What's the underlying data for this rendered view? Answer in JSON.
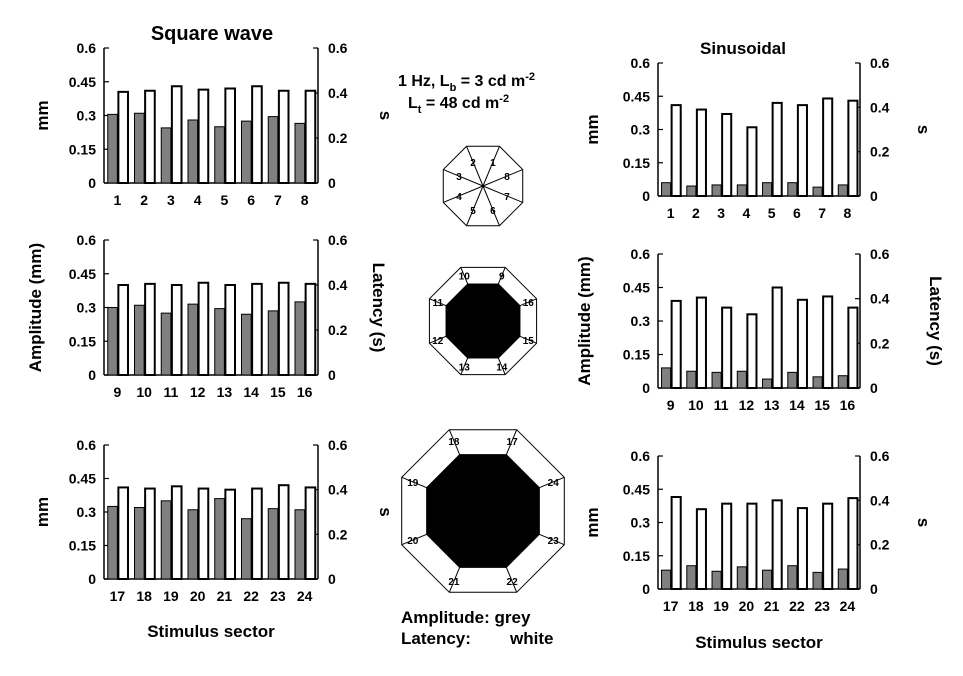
{
  "header": {
    "left_title": "Square wave",
    "right_title": "Sinusoidal",
    "condition_line1_prefix": "1 Hz, L",
    "condition_line1_sub": "b",
    "condition_line1_mid": " = 3 cd m",
    "condition_line1_sup": "-2",
    "condition_line2_prefix": "L",
    "condition_line2_sub": "t",
    "condition_line2_mid": " = 48 cd m",
    "condition_line2_sup": "-2"
  },
  "legend": {
    "line1": "Amplitude: grey",
    "line2_label": "Latency:",
    "line2_value": "white",
    "amplitude_color": "#808080",
    "latency_color": "#ffffff"
  },
  "stimulus_diagrams": [
    {
      "sectors": [
        "1",
        "2",
        "3",
        "4",
        "5",
        "6",
        "7",
        "8"
      ],
      "center_filled": false
    },
    {
      "sectors": [
        "9",
        "10",
        "11",
        "12",
        "13",
        "14",
        "15",
        "16"
      ],
      "center_filled": true
    },
    {
      "sectors": [
        "17",
        "18",
        "19",
        "20",
        "21",
        "22",
        "23",
        "24"
      ],
      "center_filled": true
    }
  ],
  "chart_data": [
    {
      "type": "bar",
      "name": "square-ring1",
      "categories": [
        "1",
        "2",
        "3",
        "4",
        "5",
        "6",
        "7",
        "8"
      ],
      "series": [
        {
          "name": "Amplitude",
          "axis": "left",
          "color": "#808080",
          "values": [
            0.305,
            0.31,
            0.245,
            0.28,
            0.25,
            0.275,
            0.295,
            0.265
          ]
        },
        {
          "name": "Latency",
          "axis": "right",
          "color": "#ffffff",
          "values": [
            0.405,
            0.41,
            0.43,
            0.415,
            0.42,
            0.43,
            0.41,
            0.41
          ]
        }
      ],
      "left_ticks": [
        "0",
        "0.15",
        "0.3",
        "0.45",
        "0.6"
      ],
      "right_ticks": [
        "0",
        "0.2",
        "0.4",
        "0.6"
      ],
      "ylim_left": [
        0,
        0.6
      ],
      "ylim_right": [
        0,
        0.6
      ],
      "ylabel_left": "mm",
      "ylabel_right": "s",
      "xlabel": ""
    },
    {
      "type": "bar",
      "name": "square-ring2",
      "categories": [
        "9",
        "10",
        "11",
        "12",
        "13",
        "14",
        "15",
        "16"
      ],
      "series": [
        {
          "name": "Amplitude",
          "axis": "left",
          "color": "#808080",
          "values": [
            0.3,
            0.31,
            0.275,
            0.315,
            0.295,
            0.27,
            0.285,
            0.325
          ]
        },
        {
          "name": "Latency",
          "axis": "right",
          "color": "#ffffff",
          "values": [
            0.4,
            0.405,
            0.4,
            0.41,
            0.4,
            0.405,
            0.41,
            0.405
          ]
        }
      ],
      "left_ticks": [
        "0",
        "0.15",
        "0.3",
        "0.45",
        "0.6"
      ],
      "right_ticks": [
        "0",
        "0.2",
        "0.4",
        "0.6"
      ],
      "ylim_left": [
        0,
        0.6
      ],
      "ylim_right": [
        0,
        0.6
      ],
      "ylabel_left": "Amplitude (mm)",
      "ylabel_right": "Latency (s)",
      "xlabel": ""
    },
    {
      "type": "bar",
      "name": "square-ring3",
      "categories": [
        "17",
        "18",
        "19",
        "20",
        "21",
        "22",
        "23",
        "24"
      ],
      "series": [
        {
          "name": "Amplitude",
          "axis": "left",
          "color": "#808080",
          "values": [
            0.325,
            0.32,
            0.35,
            0.31,
            0.36,
            0.27,
            0.315,
            0.31
          ]
        },
        {
          "name": "Latency",
          "axis": "right",
          "color": "#ffffff",
          "values": [
            0.41,
            0.405,
            0.415,
            0.405,
            0.4,
            0.405,
            0.42,
            0.41
          ]
        }
      ],
      "left_ticks": [
        "0",
        "0.15",
        "0.3",
        "0.45",
        "0.6"
      ],
      "right_ticks": [
        "0",
        "0.2",
        "0.4",
        "0.6"
      ],
      "ylim_left": [
        0,
        0.6
      ],
      "ylim_right": [
        0,
        0.6
      ],
      "ylabel_left": "mm",
      "ylabel_right": "s",
      "xlabel": "Stimulus sector"
    },
    {
      "type": "bar",
      "name": "sine-ring1",
      "categories": [
        "1",
        "2",
        "3",
        "4",
        "5",
        "6",
        "7",
        "8"
      ],
      "series": [
        {
          "name": "Amplitude",
          "axis": "left",
          "color": "#808080",
          "values": [
            0.06,
            0.045,
            0.05,
            0.05,
            0.06,
            0.06,
            0.04,
            0.05
          ]
        },
        {
          "name": "Latency",
          "axis": "right",
          "color": "#ffffff",
          "values": [
            0.41,
            0.39,
            0.37,
            0.31,
            0.42,
            0.41,
            0.44,
            0.43
          ]
        }
      ],
      "left_ticks": [
        "0",
        "0.15",
        "0.3",
        "0.45",
        "0.6"
      ],
      "right_ticks": [
        "0",
        "0.2",
        "0.4",
        "0.6"
      ],
      "ylim_left": [
        0,
        0.6
      ],
      "ylim_right": [
        0,
        0.6
      ],
      "ylabel_left": "mm",
      "ylabel_right": "s",
      "xlabel": ""
    },
    {
      "type": "bar",
      "name": "sine-ring2",
      "categories": [
        "9",
        "10",
        "11",
        "12",
        "13",
        "14",
        "15",
        "16"
      ],
      "series": [
        {
          "name": "Amplitude",
          "axis": "left",
          "color": "#808080",
          "values": [
            0.09,
            0.075,
            0.07,
            0.075,
            0.04,
            0.07,
            0.05,
            0.055
          ]
        },
        {
          "name": "Latency",
          "axis": "right",
          "color": "#ffffff",
          "values": [
            0.39,
            0.405,
            0.36,
            0.33,
            0.45,
            0.395,
            0.41,
            0.36
          ]
        }
      ],
      "left_ticks": [
        "0",
        "0.15",
        "0.3",
        "0.45",
        "0.6"
      ],
      "right_ticks": [
        "0",
        "0.2",
        "0.4",
        "0.6"
      ],
      "ylim_left": [
        0,
        0.6
      ],
      "ylim_right": [
        0,
        0.6
      ],
      "ylabel_left": "Amplitude (mm)",
      "ylabel_right": "Latency (s)",
      "xlabel": ""
    },
    {
      "type": "bar",
      "name": "sine-ring3",
      "categories": [
        "17",
        "18",
        "19",
        "20",
        "21",
        "22",
        "23",
        "24"
      ],
      "series": [
        {
          "name": "Amplitude",
          "axis": "left",
          "color": "#808080",
          "values": [
            0.085,
            0.105,
            0.08,
            0.1,
            0.085,
            0.105,
            0.075,
            0.09
          ]
        },
        {
          "name": "Latency",
          "axis": "right",
          "color": "#ffffff",
          "values": [
            0.415,
            0.36,
            0.385,
            0.385,
            0.4,
            0.365,
            0.385,
            0.41
          ]
        }
      ],
      "left_ticks": [
        "0",
        "0.15",
        "0.3",
        "0.45",
        "0.6"
      ],
      "right_ticks": [
        "0",
        "0.2",
        "0.4",
        "0.6"
      ],
      "ylim_left": [
        0,
        0.6
      ],
      "ylim_right": [
        0,
        0.6
      ],
      "ylabel_left": "mm",
      "ylabel_right": "s",
      "xlabel": "Stimulus sector"
    }
  ]
}
